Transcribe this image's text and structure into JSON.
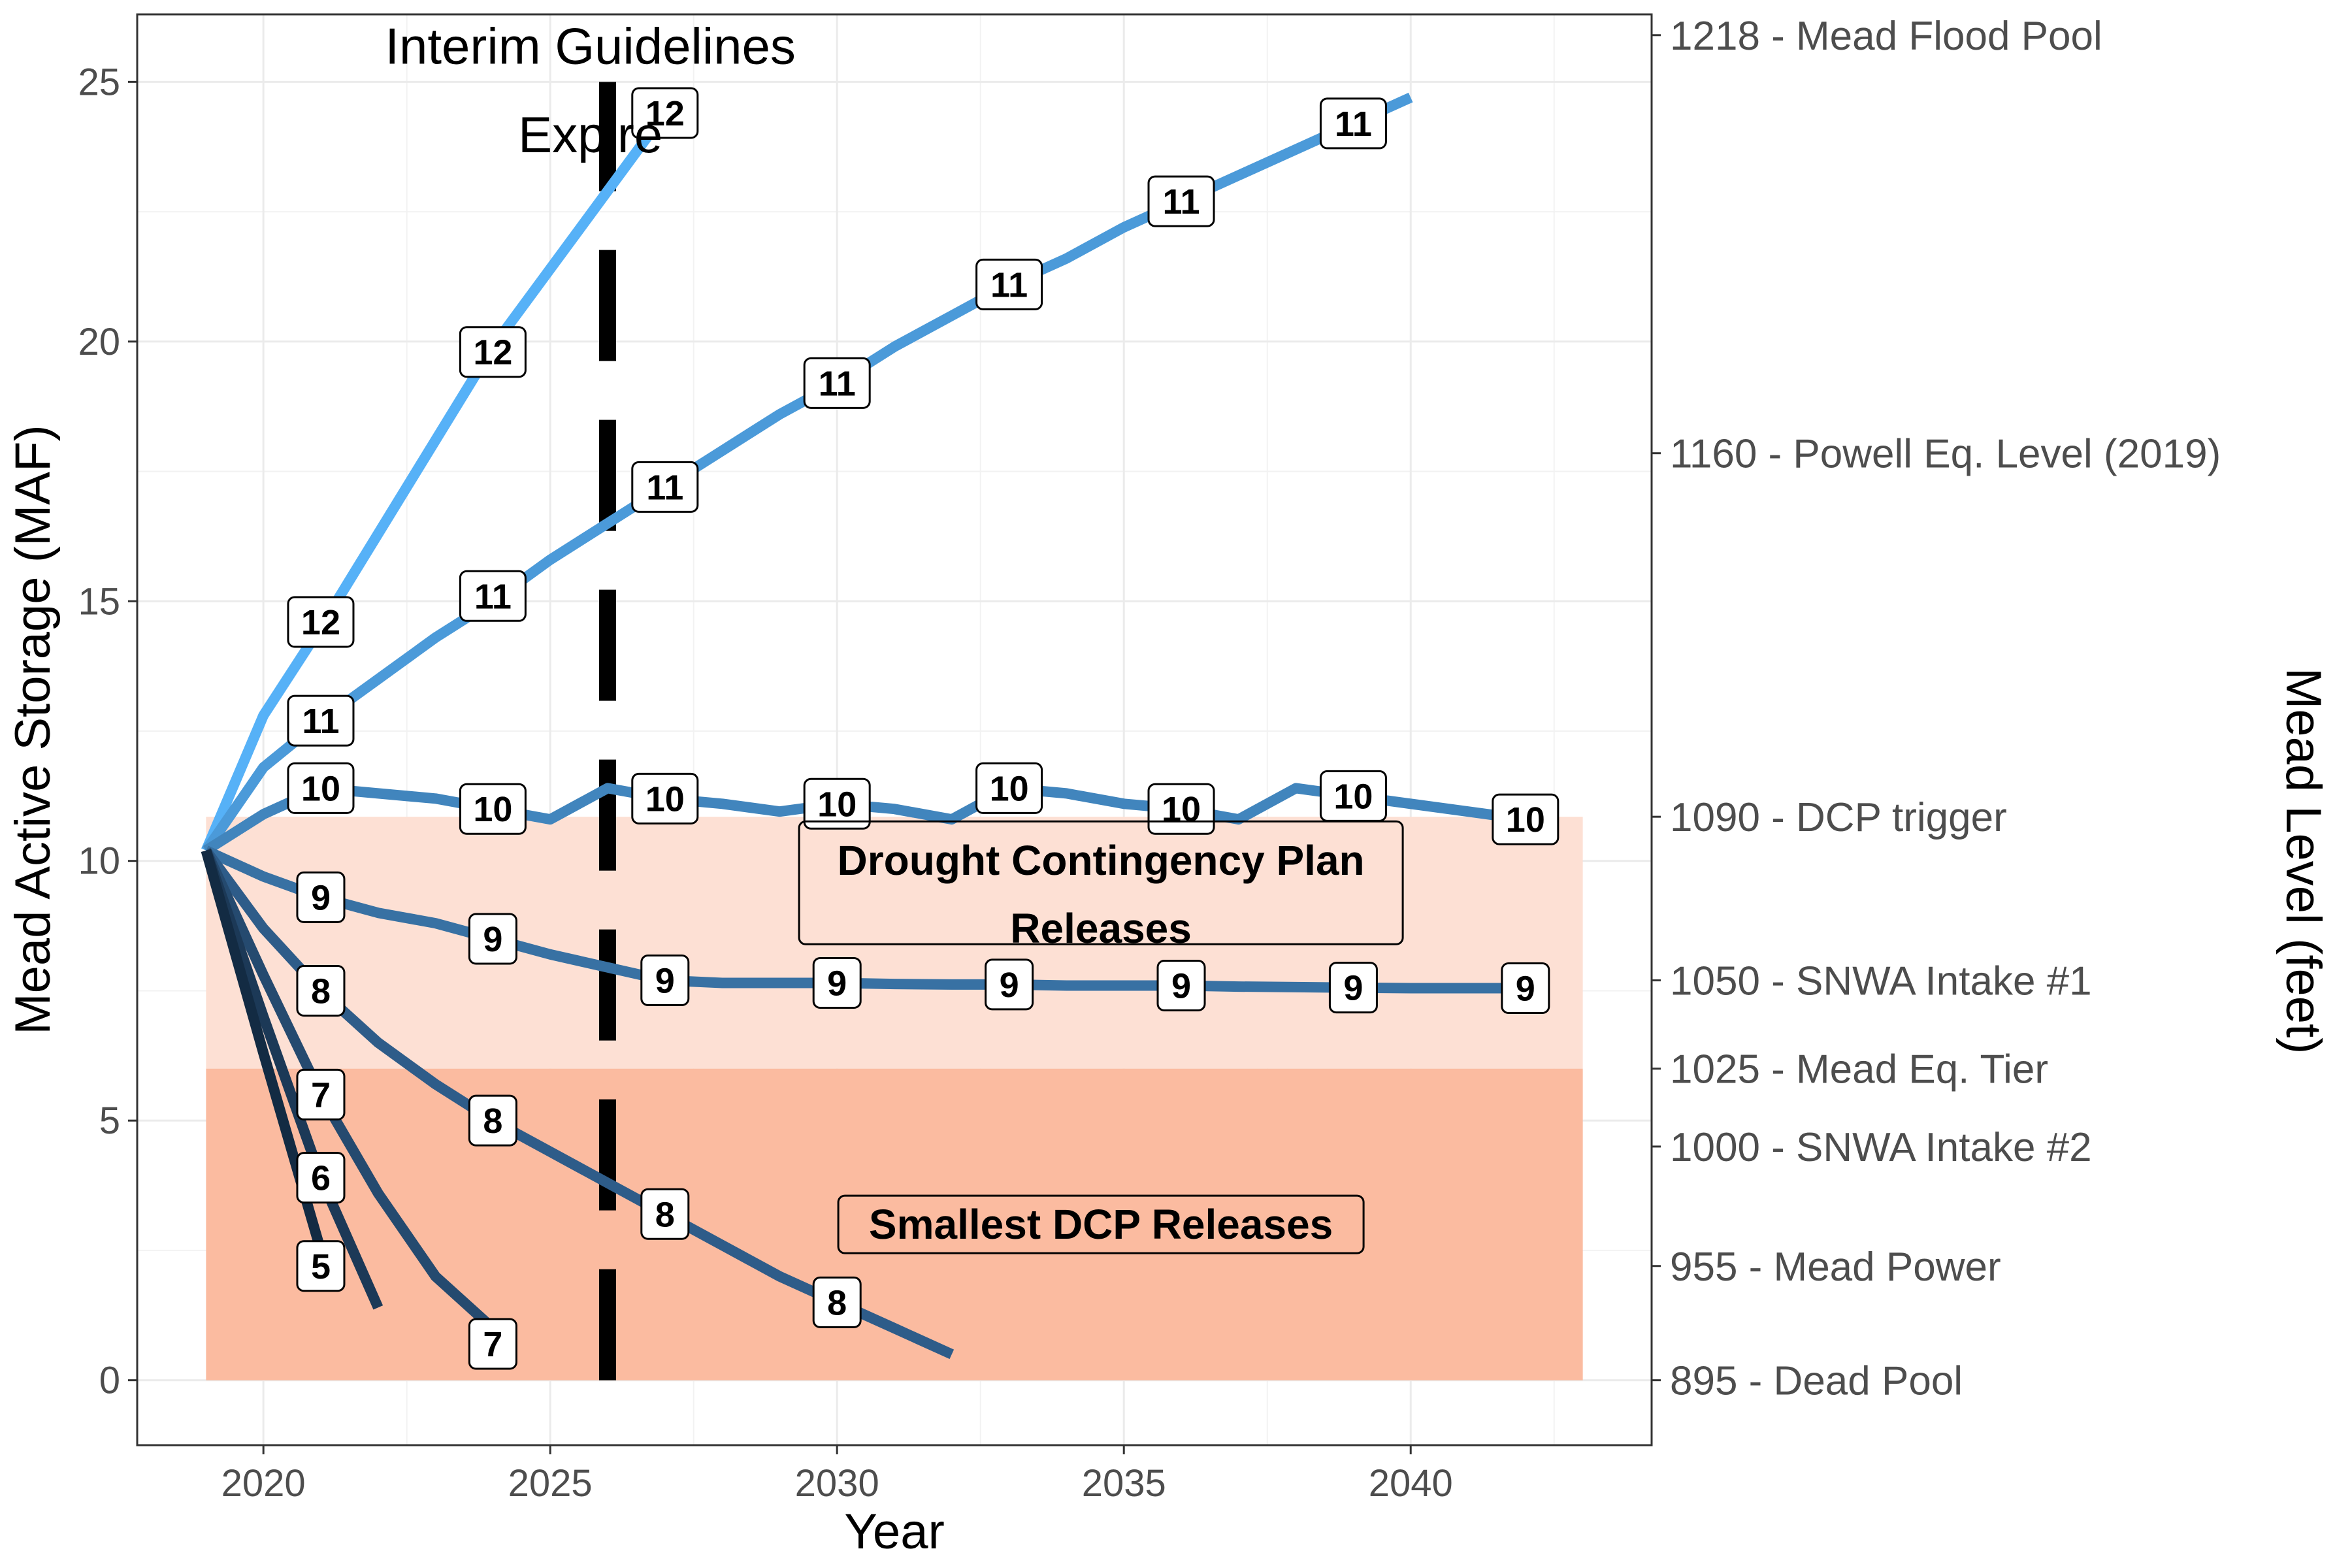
{
  "chart_data": {
    "type": "line",
    "title": "",
    "xlabel": "Year",
    "ylabel": "Mead Active Storage (MAF)",
    "y2label": "Mead Level (feet)",
    "xlim": [
      2017.8,
      2044.2
    ],
    "ylim": [
      -1.25,
      26.3
    ],
    "x_ticks": [
      2020,
      2025,
      2030,
      2035,
      2040
    ],
    "y_ticks": [
      0,
      5,
      10,
      15,
      20,
      25
    ],
    "grid": true,
    "colors": {
      "line_dark": "#132b43",
      "line_light": "#56b1f7",
      "zone_dcp": "#fde0d4",
      "zone_small": "#fbbba0",
      "dashed_line": "#000000"
    },
    "zones": [
      {
        "x": [
          2019,
          2043
        ],
        "y": [
          6.0,
          10.85
        ],
        "label": "Drought Contingency Plan Releases",
        "label_x": 2034.6,
        "label_y": 9.0,
        "color_key": "zone_dcp"
      },
      {
        "x": [
          2019,
          2043
        ],
        "y": [
          0,
          6.0
        ],
        "label": "Smallest DCP Releases",
        "label_x": 2034.6,
        "label_y": 3.0,
        "color_key": "zone_small"
      }
    ],
    "vline": {
      "x": 2026,
      "y": [
        0,
        25
      ]
    },
    "annotation": {
      "lines": [
        "Interim Guidelines",
        "Expire"
      ],
      "x": 2025.7,
      "y": [
        25.7,
        24.0
      ]
    },
    "right_axis": [
      {
        "y": 25.9,
        "label": "1218  -  Mead Flood Pool"
      },
      {
        "y": 17.85,
        "label": "1160  -  Powell Eq. Level (2019)"
      },
      {
        "y": 10.85,
        "label": "1090  -  DCP trigger"
      },
      {
        "y": 7.7,
        "label": "1050  -  SNWA Intake #1"
      },
      {
        "y": 6.0,
        "label": "1025  -  Mead Eq. Tier"
      },
      {
        "y": 4.5,
        "label": "1000  -  SNWA Intake #2"
      },
      {
        "y": 2.2,
        "label": "955  -  Mead Power"
      },
      {
        "y": 0.0,
        "label": "895  -  Dead Pool"
      }
    ],
    "series": [
      {
        "flow": "12",
        "color": "#56b1f7",
        "x": [
          2019,
          2020,
          2021,
          2022,
          2023,
          2024,
          2025,
          2026,
          2027
        ],
        "y": [
          10.2,
          12.8,
          14.5,
          16.3,
          18.1,
          19.9,
          21.4,
          22.9,
          24.4
        ],
        "labels": [
          {
            "x": 2021,
            "y": 14.6
          },
          {
            "x": 2024,
            "y": 19.8
          },
          {
            "x": 2027,
            "y": 24.4
          }
        ]
      },
      {
        "flow": "11",
        "color": "#4b9ad9",
        "x": [
          2019,
          2020,
          2021,
          2022,
          2023,
          2024,
          2025,
          2026,
          2027,
          2028,
          2029,
          2030,
          2031,
          2032,
          2033,
          2034,
          2035,
          2036,
          2037,
          2038,
          2039,
          2040
        ],
        "y": [
          10.2,
          11.8,
          12.7,
          13.5,
          14.3,
          15.0,
          15.8,
          16.5,
          17.2,
          17.9,
          18.6,
          19.2,
          19.9,
          20.5,
          21.1,
          21.6,
          22.2,
          22.7,
          23.2,
          23.7,
          24.2,
          24.7
        ],
        "labels": [
          {
            "x": 2021,
            "y": 12.7
          },
          {
            "x": 2024,
            "y": 15.1
          },
          {
            "x": 2027,
            "y": 17.2
          },
          {
            "x": 2030,
            "y": 19.2
          },
          {
            "x": 2033,
            "y": 21.1
          },
          {
            "x": 2036,
            "y": 22.7
          },
          {
            "x": 2039,
            "y": 24.2
          }
        ]
      },
      {
        "flow": "10",
        "color": "#4185bd",
        "x": [
          2019,
          2020,
          2021,
          2022,
          2023,
          2024,
          2025,
          2026,
          2027,
          2028,
          2029,
          2030,
          2031,
          2032,
          2033,
          2034,
          2035,
          2036,
          2037,
          2038,
          2039,
          2040,
          2041,
          2042
        ],
        "y": [
          10.2,
          10.9,
          11.4,
          11.3,
          11.2,
          11.0,
          10.8,
          11.4,
          11.2,
          11.1,
          10.95,
          11.1,
          11.0,
          10.8,
          11.4,
          11.3,
          11.1,
          11.0,
          10.8,
          11.4,
          11.25,
          11.1,
          10.95,
          10.8
        ],
        "labels": [
          {
            "x": 2021,
            "y": 11.4
          },
          {
            "x": 2024,
            "y": 11.0
          },
          {
            "x": 2027,
            "y": 11.2
          },
          {
            "x": 2030,
            "y": 11.1
          },
          {
            "x": 2033,
            "y": 11.4
          },
          {
            "x": 2036,
            "y": 11.0
          },
          {
            "x": 2039,
            "y": 11.25
          },
          {
            "x": 2042,
            "y": 10.8
          }
        ]
      },
      {
        "flow": "9",
        "color": "#3871a3",
        "x": [
          2019,
          2020,
          2021,
          2022,
          2023,
          2024,
          2025,
          2026,
          2027,
          2028,
          2029,
          2030,
          2031,
          2032,
          2033,
          2034,
          2035,
          2036,
          2037,
          2038,
          2039,
          2040,
          2041,
          2042
        ],
        "y": [
          10.2,
          9.7,
          9.3,
          9.0,
          8.8,
          8.5,
          8.2,
          7.95,
          7.7,
          7.65,
          7.65,
          7.65,
          7.63,
          7.62,
          7.62,
          7.6,
          7.6,
          7.6,
          7.58,
          7.57,
          7.56,
          7.55,
          7.55,
          7.55
        ],
        "labels": [
          {
            "x": 2021,
            "y": 9.3
          },
          {
            "x": 2024,
            "y": 8.5
          },
          {
            "x": 2027,
            "y": 7.7
          },
          {
            "x": 2030,
            "y": 7.65
          },
          {
            "x": 2033,
            "y": 7.62
          },
          {
            "x": 2036,
            "y": 7.6
          },
          {
            "x": 2039,
            "y": 7.56
          },
          {
            "x": 2042,
            "y": 7.55
          }
        ]
      },
      {
        "flow": "8",
        "color": "#2e5c89",
        "x": [
          2019,
          2020,
          2021,
          2022,
          2023,
          2024,
          2025,
          2026,
          2027,
          2028,
          2029,
          2030,
          2031,
          2032
        ],
        "y": [
          10.2,
          8.7,
          7.5,
          6.5,
          5.7,
          5.0,
          4.4,
          3.8,
          3.2,
          2.6,
          2.0,
          1.5,
          1.0,
          0.5
        ],
        "labels": [
          {
            "x": 2021,
            "y": 7.5
          },
          {
            "x": 2024,
            "y": 5.0
          },
          {
            "x": 2027,
            "y": 3.2
          },
          {
            "x": 2030,
            "y": 1.5
          }
        ]
      },
      {
        "flow": "7",
        "color": "#254a6f",
        "x": [
          2019,
          2020,
          2021,
          2022,
          2023,
          2024
        ],
        "y": [
          10.2,
          7.8,
          5.5,
          3.6,
          2.0,
          1.0
        ],
        "labels": [
          {
            "x": 2021,
            "y": 5.5
          },
          {
            "x": 2024,
            "y": 0.7
          }
        ]
      },
      {
        "flow": "6",
        "color": "#1c3957",
        "x": [
          2019,
          2020,
          2021,
          2022
        ],
        "y": [
          10.2,
          7.0,
          3.9,
          1.4
        ],
        "labels": [
          {
            "x": 2021,
            "y": 3.9
          }
        ]
      },
      {
        "flow": "5",
        "color": "#132b43",
        "x": [
          2019,
          2020,
          2021
        ],
        "y": [
          10.2,
          6.3,
          2.5
        ],
        "labels": [
          {
            "x": 2021,
            "y": 2.2
          }
        ]
      }
    ]
  }
}
